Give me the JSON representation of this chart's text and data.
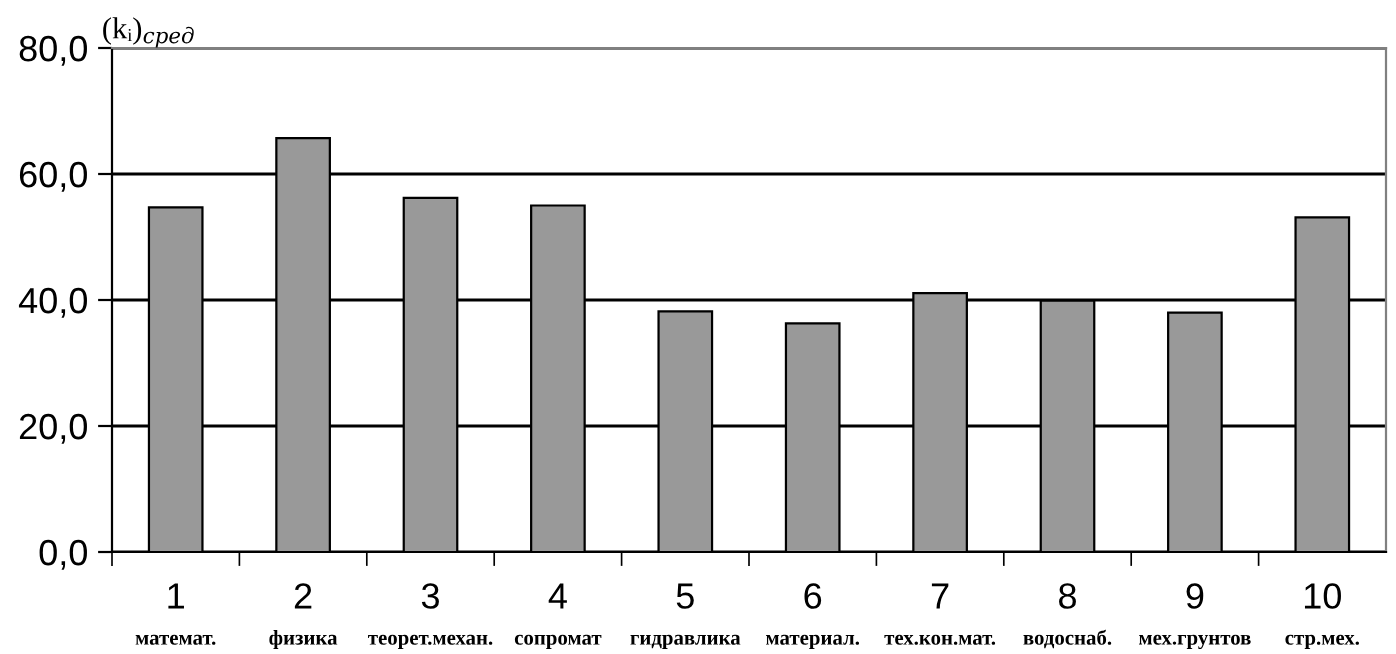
{
  "chart_data": {
    "type": "bar",
    "ylabel": "(kᵢ)$_{сред}$",
    "categories": [
      "1\nматемат.",
      "2\nфизика",
      "3\nтеорет.механ.",
      "4\nсопромат",
      "5\nгидравлика",
      "6\nматериал.",
      "7\nтех.кон.мат.",
      "8\nводоснаб.",
      "9\nмех.грунтов",
      "10\nстр.мех."
    ],
    "values": [
      54.7,
      65.7,
      56.2,
      55.0,
      38.2,
      36.3,
      41.1,
      39.9,
      38.0,
      53.1
    ],
    "color": "#999999",
    "ylim": [
      0,
      80
    ],
    "yticks": [
      {
        "value": 0,
        "label": "0,0"
      },
      {
        "value": 20,
        "label": "20,0"
      },
      {
        "value": 40,
        "label": "40,0"
      },
      {
        "value": 60,
        "label": "60,0"
      },
      {
        "value": 80,
        "label": "80,0"
      }
    ],
    "grid": "y"
  }
}
